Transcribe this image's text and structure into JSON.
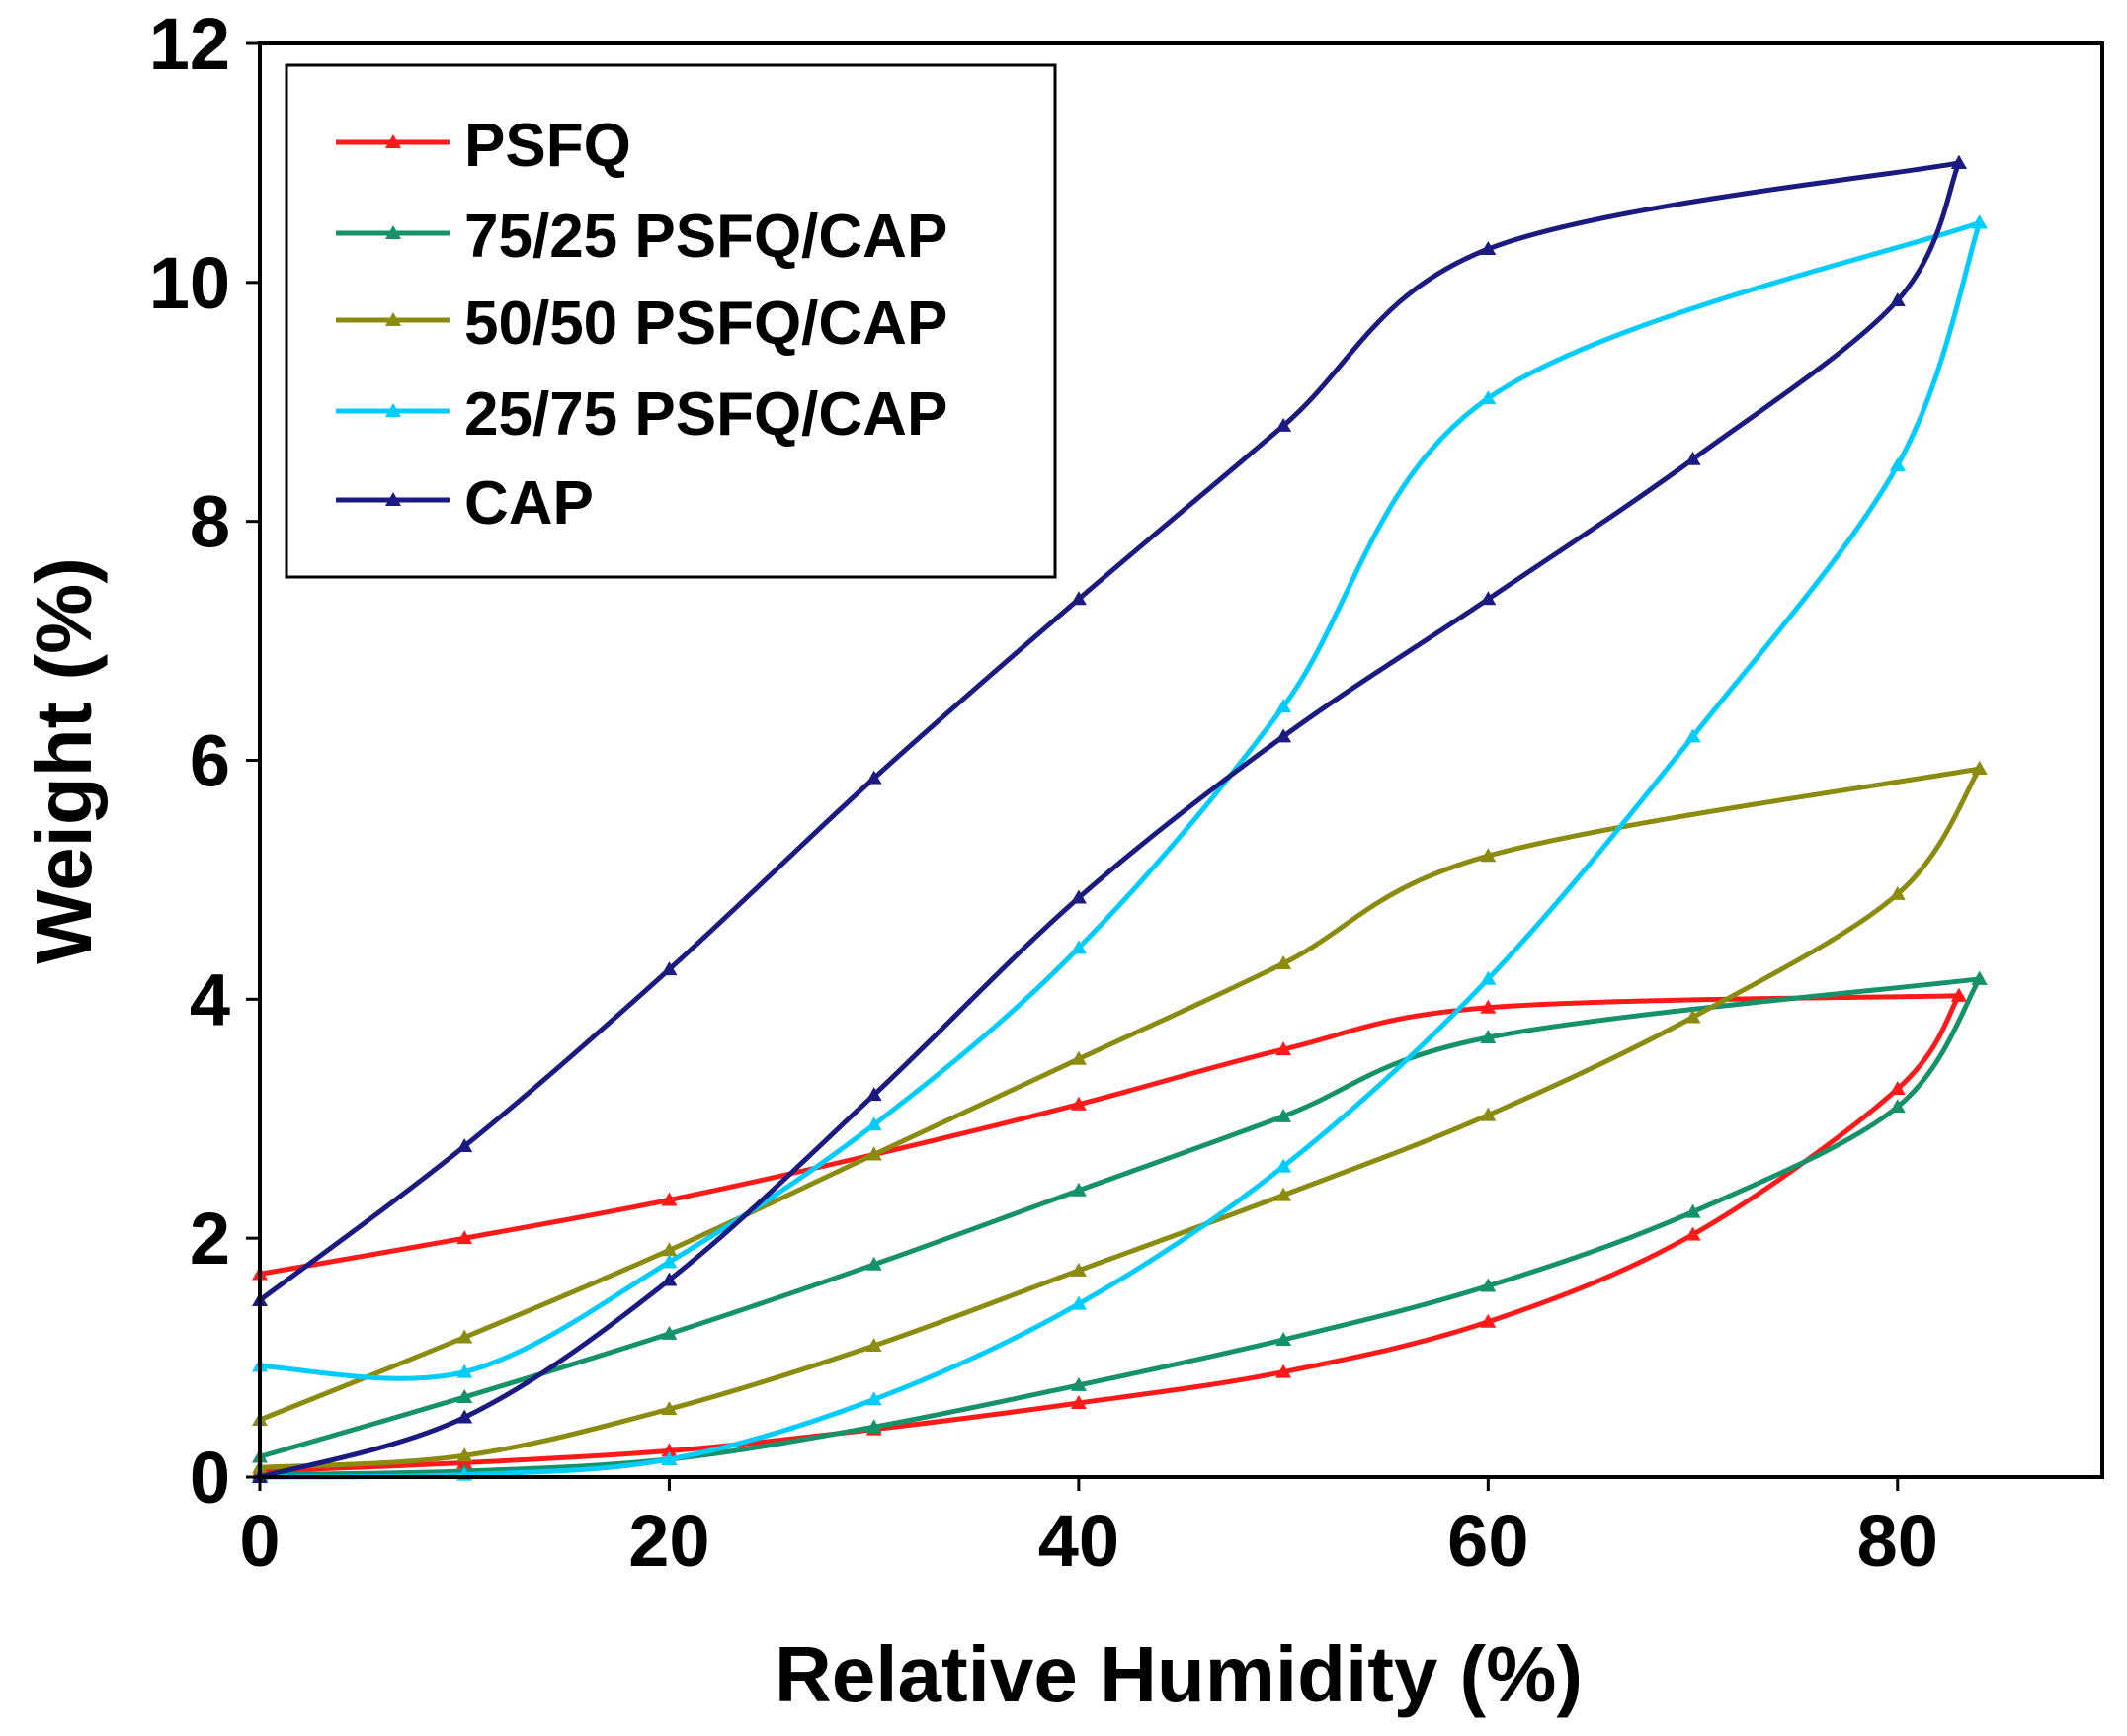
{
  "chart_data": {
    "type": "line",
    "title": "",
    "xlabel": "Relative Humidity (%)",
    "ylabel": "Weight (%)",
    "xlim": [
      0,
      90
    ],
    "ylim": [
      0,
      12
    ],
    "xticks": [
      "0",
      "20",
      "40",
      "60",
      "80"
    ],
    "yticks": [
      "0",
      "2",
      "4",
      "6",
      "8",
      "10",
      "12"
    ],
    "legend_position": "top-left",
    "grid": false,
    "series": [
      {
        "name": "PSFQ",
        "color": "#ff1a1a",
        "sorption": {
          "x": [
            0,
            10,
            20,
            30,
            40,
            50,
            60,
            70,
            80,
            83
          ],
          "y": [
            0.05,
            0.12,
            0.22,
            0.4,
            0.62,
            0.88,
            1.3,
            2.03,
            3.25,
            4.03
          ]
        },
        "desorption": {
          "x": [
            83,
            60,
            50,
            40,
            30,
            20,
            10,
            0
          ],
          "y": [
            4.03,
            3.93,
            3.58,
            3.12,
            2.7,
            2.32,
            2.0,
            1.7
          ]
        }
      },
      {
        "name": "75/25 PSFQ/CAP",
        "color": "#16926a",
        "sorption": {
          "x": [
            0,
            10,
            20,
            30,
            40,
            50,
            60,
            70,
            80,
            84
          ],
          "y": [
            0.02,
            0.05,
            0.15,
            0.42,
            0.77,
            1.15,
            1.6,
            2.22,
            3.1,
            4.17
          ]
        },
        "desorption": {
          "x": [
            84,
            60,
            50,
            40,
            30,
            20,
            10,
            0
          ],
          "y": [
            4.17,
            3.68,
            3.02,
            2.4,
            1.78,
            1.2,
            0.67,
            0.17
          ]
        }
      },
      {
        "name": "50/50 PSFQ/CAP",
        "color": "#8b8b0f",
        "sorption": {
          "x": [
            0,
            10,
            20,
            30,
            40,
            50,
            60,
            70,
            80,
            84
          ],
          "y": [
            0.08,
            0.18,
            0.57,
            1.1,
            1.73,
            2.36,
            3.03,
            3.85,
            4.88,
            5.93
          ]
        },
        "desorption": {
          "x": [
            84,
            60,
            50,
            40,
            30,
            20,
            10,
            0
          ],
          "y": [
            5.93,
            5.2,
            4.3,
            3.5,
            2.7,
            1.9,
            1.17,
            0.48
          ]
        }
      },
      {
        "name": "25/75 PSFQ/CAP",
        "color": "#00ccff",
        "sorption": {
          "x": [
            0,
            10,
            20,
            30,
            40,
            50,
            60,
            70,
            80,
            84
          ],
          "y": [
            0.0,
            0.02,
            0.15,
            0.65,
            1.45,
            2.6,
            4.17,
            6.2,
            8.47,
            10.5
          ]
        },
        "desorption": {
          "x": [
            84,
            60,
            50,
            40,
            30,
            20,
            10,
            0
          ],
          "y": [
            10.5,
            9.03,
            6.45,
            4.43,
            2.95,
            1.8,
            0.88,
            0.93
          ]
        }
      },
      {
        "name": "CAP",
        "color": "#1a1a80",
        "sorption": {
          "x": [
            0,
            10,
            20,
            30,
            40,
            50,
            60,
            70,
            80,
            83
          ],
          "y": [
            0.0,
            0.5,
            1.65,
            3.2,
            4.85,
            6.2,
            7.35,
            8.52,
            9.85,
            11.0
          ]
        },
        "desorption": {
          "x": [
            83,
            60,
            50,
            40,
            30,
            20,
            10,
            0
          ],
          "y": [
            11.0,
            10.28,
            8.8,
            7.35,
            5.85,
            4.25,
            2.77,
            1.48
          ]
        }
      }
    ]
  }
}
